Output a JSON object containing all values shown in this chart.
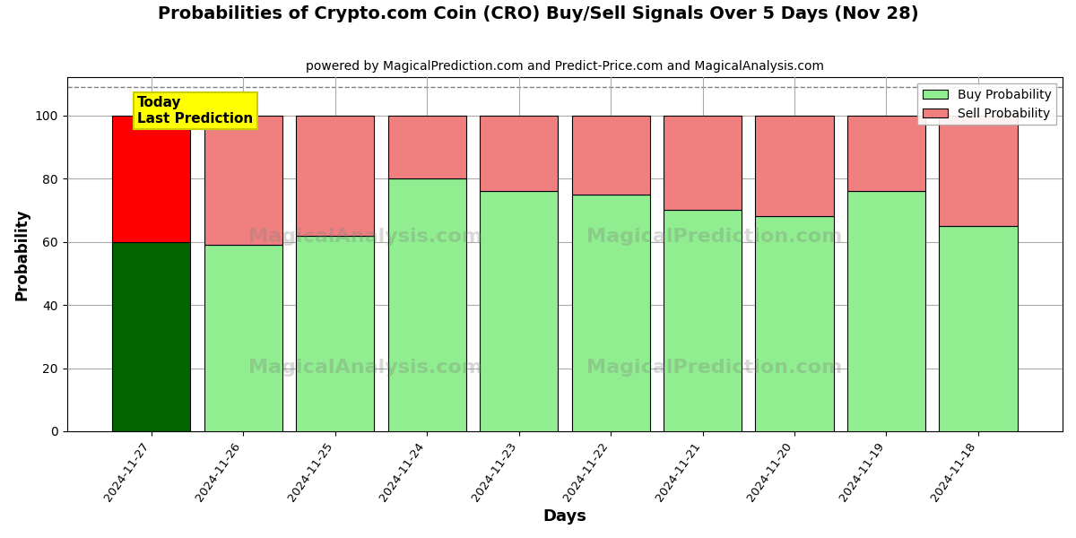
{
  "title": "Probabilities of Crypto.com Coin (CRO) Buy/Sell Signals Over 5 Days (Nov 28)",
  "subtitle": "powered by MagicalPrediction.com and Predict-Price.com and MagicalAnalysis.com",
  "xlabel": "Days",
  "ylabel": "Probability",
  "categories": [
    "2024-11-27",
    "2024-11-26",
    "2024-11-25",
    "2024-11-24",
    "2024-11-23",
    "2024-11-22",
    "2024-11-21",
    "2024-11-20",
    "2024-11-19",
    "2024-11-18"
  ],
  "buy_values": [
    60,
    59,
    62,
    80,
    76,
    75,
    70,
    68,
    76,
    65
  ],
  "sell_values": [
    40,
    41,
    38,
    20,
    24,
    25,
    30,
    32,
    24,
    35
  ],
  "today_buy_color": "#006400",
  "today_sell_color": "#FF0000",
  "buy_color": "#90EE90",
  "sell_color": "#F08080",
  "today_annotation_bg": "#FFFF00",
  "today_annotation_text": "Today\nLast Prediction",
  "ylim": [
    0,
    112
  ],
  "dashed_line_y": 109,
  "legend_buy_label": "Buy Probability",
  "legend_sell_label": "Sell Probability",
  "figsize": [
    12,
    6
  ],
  "dpi": 100,
  "background_color": "#ffffff",
  "plot_background_color": "#ffffff",
  "grid_color": "#aaaaaa",
  "bar_edge_color": "#000000",
  "bar_linewidth": 0.8,
  "bar_width": 0.85
}
